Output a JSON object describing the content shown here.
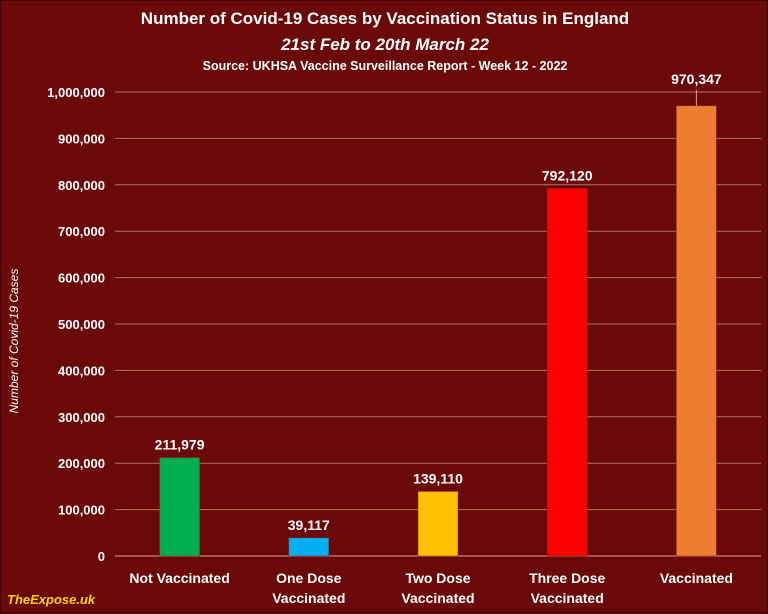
{
  "chart_data": {
    "type": "bar",
    "title": "Number of Covid-19 Cases by Vaccination Status in England",
    "subtitle": "21st Feb to 20th March 22",
    "source": "Source: UKHSA Vaccine Surveillance Report - Week 12 - 2022",
    "xlabel": "",
    "ylabel": "Number of Covid-19 Cases",
    "categories": [
      [
        "Not Vaccinated"
      ],
      [
        "One Dose",
        "Vaccinated"
      ],
      [
        "Two Dose",
        "Vaccinated"
      ],
      [
        "Three Dose",
        "Vaccinated"
      ],
      [
        "Vaccinated"
      ]
    ],
    "values": [
      211979,
      39117,
      139110,
      792120,
      970347
    ],
    "value_labels": [
      "211,979",
      "39,117",
      "139,110",
      "792,120",
      "970,347"
    ],
    "colors": [
      "#00b050",
      "#00b0f0",
      "#ffc000",
      "#ff0000",
      "#ed7d31"
    ],
    "ylim": [
      0,
      1000000
    ],
    "yticks": [
      0,
      100000,
      200000,
      300000,
      400000,
      500000,
      600000,
      700000,
      800000,
      900000,
      1000000
    ],
    "ytick_labels": [
      "0",
      "100,000",
      "200,000",
      "300,000",
      "400,000",
      "500,000",
      "600,000",
      "700,000",
      "800,000",
      "900,000",
      "1,000,000"
    ],
    "grid": true,
    "legend": "none"
  },
  "watermark": "TheExpose.uk"
}
